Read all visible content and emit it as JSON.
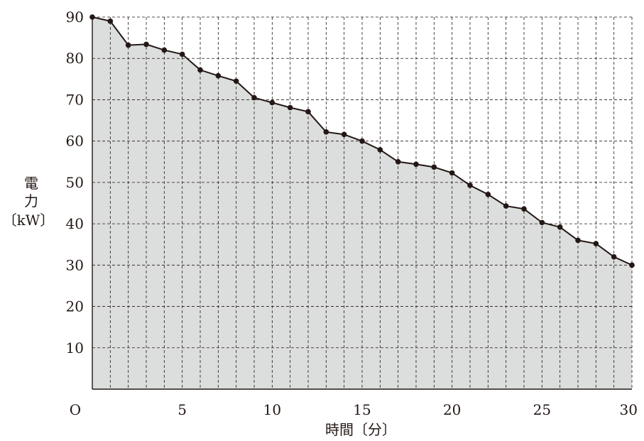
{
  "chart_data": {
    "type": "area",
    "ylabel_lines": [
      "電",
      "力",
      "〔kW〕"
    ],
    "xlabel": "時間〔分〕",
    "origin_label": "O",
    "xlim": [
      0,
      30
    ],
    "ylim": [
      0,
      90
    ],
    "x_ticks": [
      5,
      10,
      15,
      20,
      25,
      30
    ],
    "y_ticks": [
      10,
      20,
      30,
      40,
      50,
      60,
      70,
      80,
      90
    ],
    "grid": true,
    "x_grid_step": 1,
    "y_grid_step": 10,
    "fill_color": "#dcdddd",
    "line_color": "#231815",
    "x": [
      0,
      1,
      2,
      3,
      4,
      5,
      6,
      7,
      8,
      9,
      10,
      11,
      12,
      13,
      14,
      15,
      16,
      17,
      18,
      19,
      20,
      21,
      22,
      23,
      24,
      25,
      26,
      27,
      28,
      29,
      30
    ],
    "values": [
      90,
      89,
      83.2,
      83.4,
      82,
      81,
      77.2,
      75.8,
      74.5,
      70.5,
      69.3,
      68.1,
      67.1,
      62.2,
      61.6,
      60,
      57.9,
      55,
      54.4,
      53.7,
      52.3,
      49.3,
      47.1,
      44.3,
      43.6,
      40.3,
      39.2,
      36,
      35.2,
      32,
      30
    ]
  }
}
